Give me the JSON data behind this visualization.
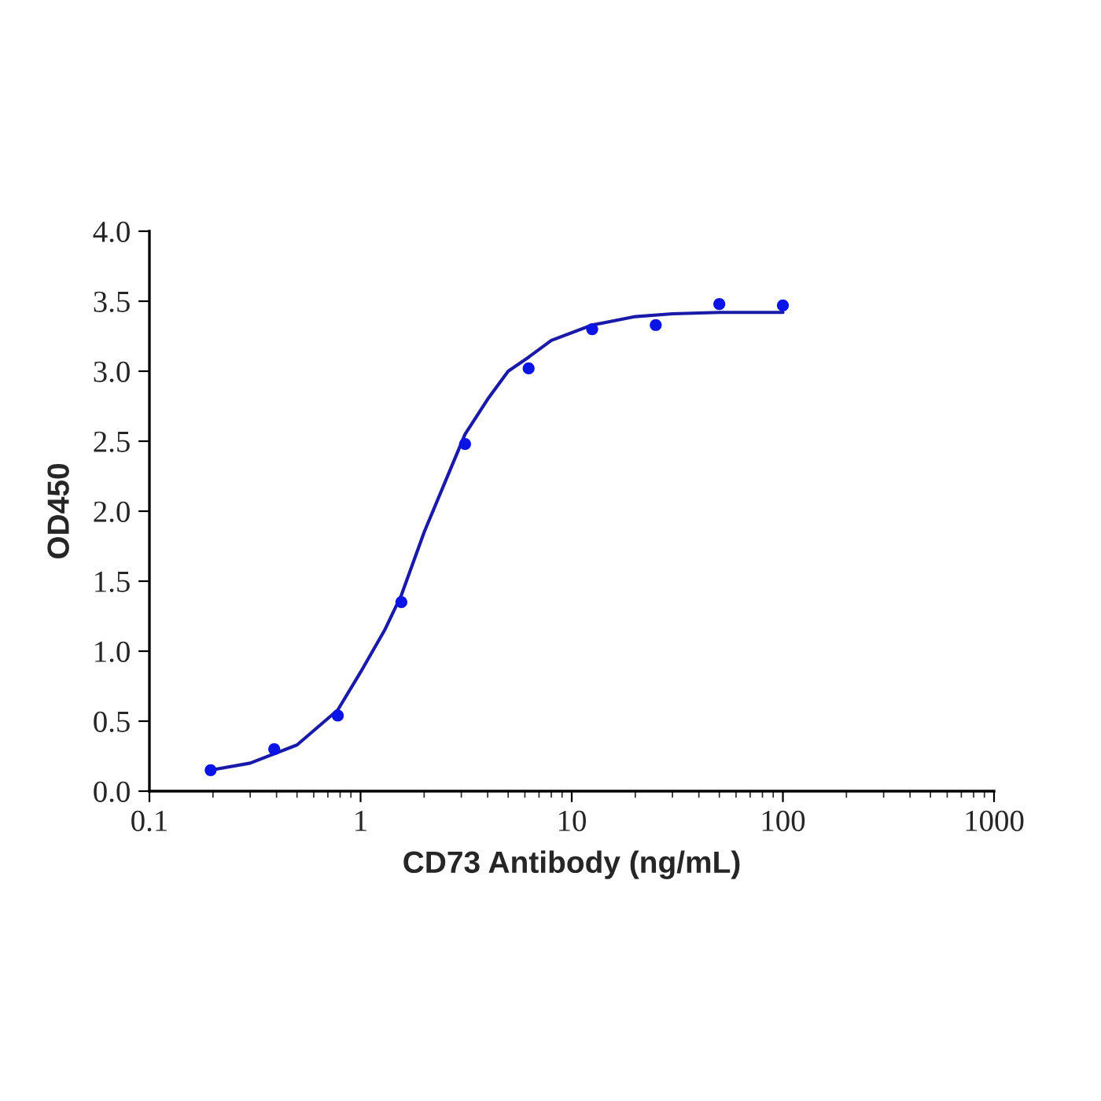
{
  "chart_data": {
    "type": "scatter",
    "xlabel": "CD73 Antibody (ng/mL)",
    "ylabel": "OD450",
    "log": "x",
    "xlim": [
      0.1,
      1000
    ],
    "xticks": [
      0.1,
      1,
      10,
      100,
      1000
    ],
    "ylim": [
      0,
      4
    ],
    "yticks": [
      {
        "value": 0,
        "label": "0.0"
      },
      {
        "value": 0.5,
        "label": "0.5"
      },
      {
        "value": 1,
        "label": "1.0"
      },
      {
        "value": 1.5,
        "label": "1.5"
      },
      {
        "value": 2,
        "label": "2.0"
      },
      {
        "value": 2.5,
        "label": "2.5"
      },
      {
        "value": 3,
        "label": "3.0"
      },
      {
        "value": 3.5,
        "label": "3.5"
      },
      {
        "value": 4,
        "label": "4.0"
      }
    ],
    "grid": false,
    "legend": false,
    "series": [
      {
        "color": "#0a14e6",
        "marker": "circle",
        "x": [
          0.195,
          0.39,
          0.78,
          1.56,
          3.125,
          6.25,
          12.5,
          25,
          50,
          100
        ],
        "values": [
          0.15,
          0.3,
          0.54,
          1.35,
          2.48,
          3.02,
          3.3,
          3.33,
          3.48,
          3.47
        ]
      },
      {
        "type": "line",
        "color": "#1a1aa8",
        "marker": "none",
        "line_style": "solid",
        "x": [
          0.195,
          0.3,
          0.5,
          0.78,
          1.0,
          1.3,
          1.56,
          2,
          2.5,
          3.125,
          4,
          5,
          6.25,
          8,
          12.5,
          20,
          30,
          50,
          100
        ],
        "values": [
          0.15,
          0.2,
          0.33,
          0.58,
          0.85,
          1.15,
          1.4,
          1.85,
          2.2,
          2.55,
          2.8,
          3.0,
          3.1,
          3.22,
          3.33,
          3.39,
          3.41,
          3.42,
          3.42
        ]
      }
    ]
  }
}
